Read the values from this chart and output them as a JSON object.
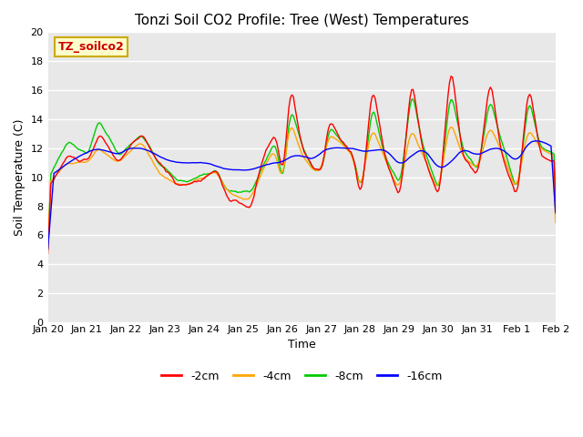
{
  "title": "Tonzi Soil CO2 Profile: Tree (West) Temperatures",
  "xlabel": "Time",
  "ylabel": "Soil Temperature (C)",
  "ylim": [
    0,
    20
  ],
  "yticks": [
    0,
    2,
    4,
    6,
    8,
    10,
    12,
    14,
    16,
    18,
    20
  ],
  "line_colors": {
    "-2cm": "#ff0000",
    "-4cm": "#ffa500",
    "-8cm": "#00cc00",
    "-16cm": "#0000ff"
  },
  "legend_labels": [
    "-2cm",
    "-4cm",
    "-8cm",
    "-16cm"
  ],
  "annotation_text": "TZ_soilco2",
  "annotation_box_color": "#ffffcc",
  "annotation_border_color": "#ccaa00",
  "annotation_text_color": "#cc0000",
  "plot_bg_color": "#e8e8e8",
  "xtick_labels": [
    "Jan 20",
    "Jan 21",
    "Jan 22",
    "Jan 23",
    "Jan 24",
    "Jan 25",
    "Jan 26",
    "Jan 27",
    "Jan 28",
    "Jan 29",
    "Jan 30",
    "Jan 31",
    "Feb 1",
    "Feb 2"
  ],
  "n_points": 336
}
